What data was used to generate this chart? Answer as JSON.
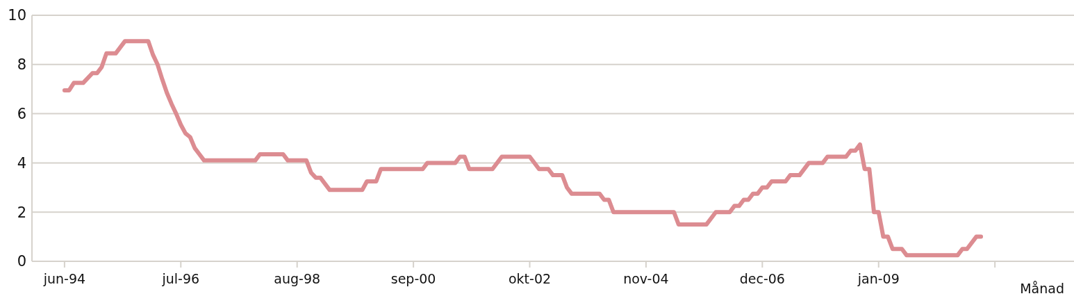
{
  "chart_data": {
    "type": "line",
    "xlabel": "Månad",
    "x": [
      "1994-06",
      "1994-07",
      "1994-08",
      "1994-10",
      "1994-12",
      "1995-01",
      "1995-02",
      "1995-03",
      "1995-05",
      "1995-07",
      "1995-12",
      "1996-01",
      "1996-02",
      "1996-03",
      "1996-04",
      "1996-05",
      "1996-06",
      "1996-07",
      "1996-08",
      "1996-09",
      "1996-10",
      "1996-11",
      "1996-12",
      "1997-11",
      "1997-12",
      "1998-05",
      "1998-06",
      "1998-10",
      "1998-11",
      "1998-12",
      "1999-01",
      "1999-03",
      "1999-10",
      "1999-11",
      "2000-01",
      "2000-02",
      "2000-11",
      "2000-12",
      "2001-06",
      "2001-07",
      "2001-08",
      "2001-09",
      "2002-02",
      "2002-04",
      "2002-10",
      "2002-12",
      "2003-02",
      "2003-03",
      "2003-05",
      "2003-06",
      "2003-07",
      "2004-01",
      "2004-02",
      "2004-03",
      "2004-04",
      "2005-05",
      "2005-06",
      "2005-12",
      "2006-02",
      "2006-05",
      "2006-06",
      "2006-07",
      "2006-08",
      "2006-09",
      "2006-10",
      "2006-11",
      "2006-12",
      "2007-01",
      "2007-02",
      "2007-05",
      "2007-06",
      "2007-08",
      "2007-10",
      "2008-01",
      "2008-02",
      "2008-06",
      "2008-07",
      "2008-08",
      "2008-09",
      "2008-10",
      "2008-11",
      "2008-12",
      "2009-01",
      "2009-02",
      "2009-03",
      "2009-04",
      "2009-06",
      "2009-07",
      "2010-06",
      "2010-07",
      "2010-08",
      "2010-10",
      "2010-11"
    ],
    "series": [
      {
        "color": "#dc8c91",
        "values": [
          6.95,
          6.95,
          7.25,
          7.25,
          7.65,
          7.65,
          7.9,
          8.45,
          8.45,
          8.95,
          8.95,
          8.4,
          8.0,
          7.4,
          6.85,
          6.4,
          6.0,
          5.55,
          5.2,
          5.05,
          4.6,
          4.35,
          4.1,
          4.1,
          4.35,
          4.35,
          4.1,
          4.1,
          3.6,
          3.4,
          3.4,
          2.9,
          2.9,
          3.25,
          3.25,
          3.75,
          3.75,
          4.0,
          4.0,
          4.25,
          4.25,
          3.75,
          3.75,
          4.25,
          4.25,
          3.75,
          3.75,
          3.5,
          3.5,
          3.0,
          2.75,
          2.75,
          2.5,
          2.5,
          2.0,
          2.0,
          1.5,
          1.5,
          2.0,
          2.0,
          2.25,
          2.25,
          2.5,
          2.5,
          2.75,
          2.75,
          3.0,
          3.0,
          3.25,
          3.25,
          3.5,
          3.5,
          4.0,
          4.0,
          4.25,
          4.25,
          4.5,
          4.5,
          4.75,
          3.75,
          3.75,
          2.0,
          2.0,
          1.0,
          1.0,
          0.5,
          0.5,
          0.25,
          0.25,
          0.5,
          0.5,
          1.0,
          1.0
        ]
      }
    ],
    "xlim": [
      "1993-11",
      "2012-07"
    ],
    "xticks": [
      {
        "value": "1994-06",
        "label": "jun-94"
      },
      {
        "value": "1996-07",
        "label": "jul-96"
      },
      {
        "value": "1998-08",
        "label": "aug-98"
      },
      {
        "value": "2000-09",
        "label": "sep-00"
      },
      {
        "value": "2002-10",
        "label": "okt-02"
      },
      {
        "value": "2004-11",
        "label": "nov-04"
      },
      {
        "value": "2006-12",
        "label": "dec-06"
      },
      {
        "value": "2009-01",
        "label": "jan-09"
      },
      {
        "value": "2011-02",
        "label": null
      }
    ],
    "ylim": [
      0,
      10
    ],
    "yticks": [
      0,
      2,
      4,
      6,
      8,
      10
    ],
    "grid": "y",
    "legend": false,
    "marker": "none",
    "line_style": "solid"
  }
}
